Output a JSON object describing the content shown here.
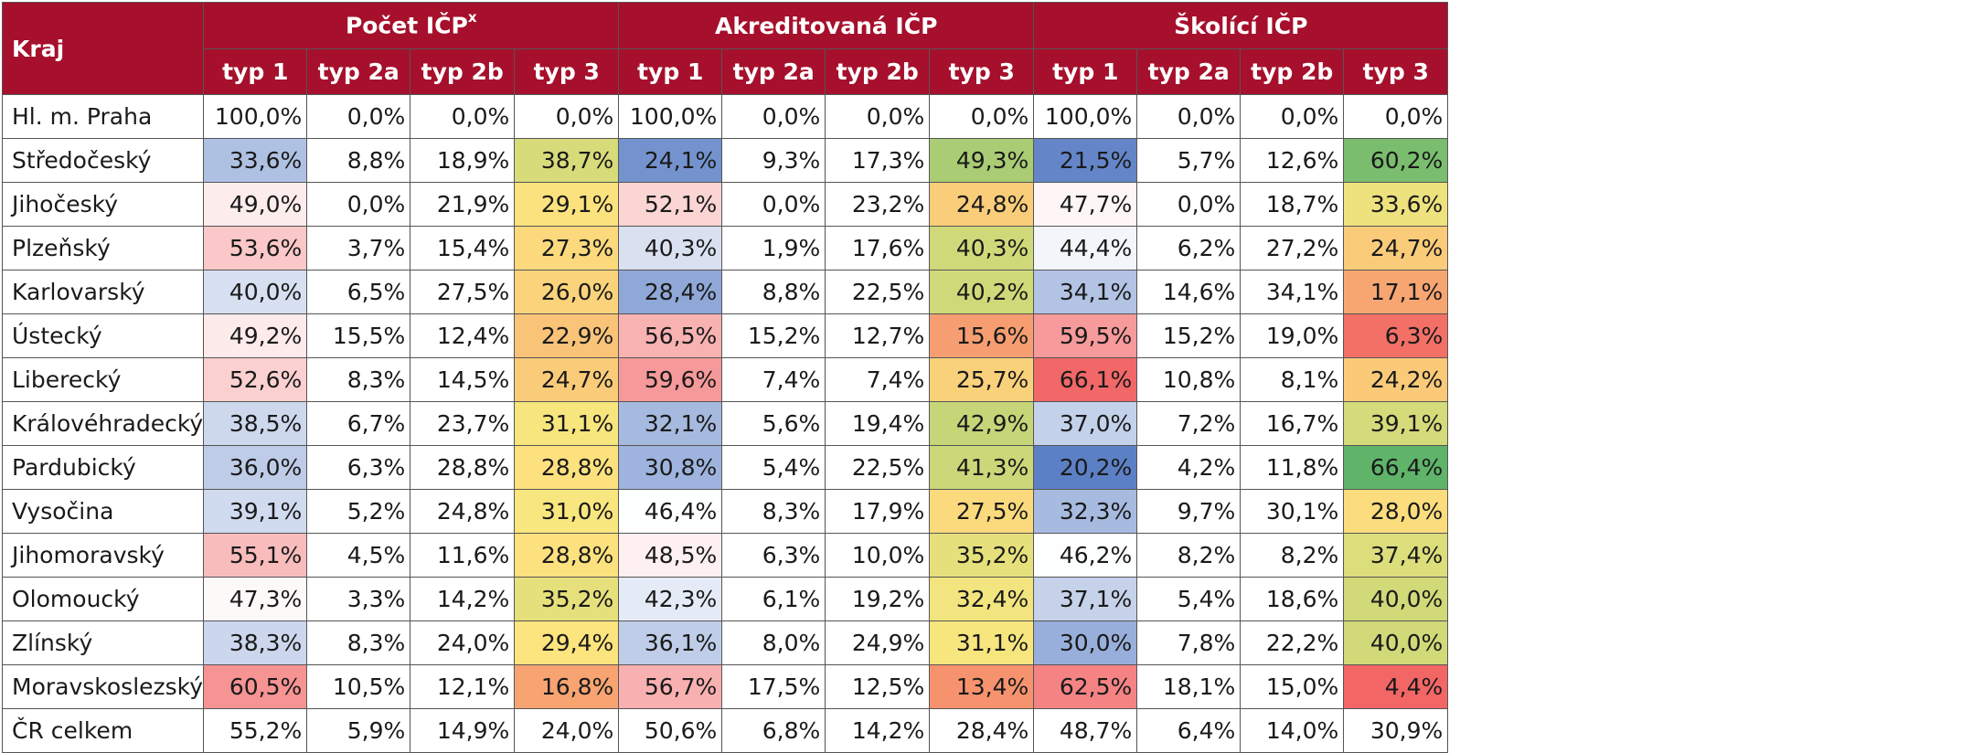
{
  "chart_data": {
    "type": "table",
    "row_header": "Kraj",
    "groups": [
      {
        "label": "Počet IČP",
        "sup": "x"
      },
      {
        "label": "Akreditovaná IČP",
        "sup": ""
      },
      {
        "label": "Školící IČP",
        "sup": ""
      }
    ],
    "subheaders": [
      "typ 1",
      "typ 2a",
      "typ 2b",
      "typ 3"
    ],
    "rows": [
      {
        "region": "Hl. m. Praha",
        "values": [
          "100,0%",
          "0,0%",
          "0,0%",
          "0,0%",
          "100,0%",
          "0,0%",
          "0,0%",
          "0,0%",
          "100,0%",
          "0,0%",
          "0,0%",
          "0,0%"
        ]
      },
      {
        "region": "Středočeský",
        "values": [
          "33,6%",
          "8,8%",
          "18,9%",
          "38,7%",
          "24,1%",
          "9,3%",
          "17,3%",
          "49,3%",
          "21,5%",
          "5,7%",
          "12,6%",
          "60,2%"
        ]
      },
      {
        "region": "Jihočeský",
        "values": [
          "49,0%",
          "0,0%",
          "21,9%",
          "29,1%",
          "52,1%",
          "0,0%",
          "23,2%",
          "24,8%",
          "47,7%",
          "0,0%",
          "18,7%",
          "33,6%"
        ]
      },
      {
        "region": "Plzeňský",
        "values": [
          "53,6%",
          "3,7%",
          "15,4%",
          "27,3%",
          "40,3%",
          "1,9%",
          "17,6%",
          "40,3%",
          "44,4%",
          "6,2%",
          "27,2%",
          "24,7%"
        ]
      },
      {
        "region": "Karlovarský",
        "values": [
          "40,0%",
          "6,5%",
          "27,5%",
          "26,0%",
          "28,4%",
          "8,8%",
          "22,5%",
          "40,2%",
          "34,1%",
          "14,6%",
          "34,1%",
          "17,1%"
        ]
      },
      {
        "region": "Ústecký",
        "values": [
          "49,2%",
          "15,5%",
          "12,4%",
          "22,9%",
          "56,5%",
          "15,2%",
          "12,7%",
          "15,6%",
          "59,5%",
          "15,2%",
          "19,0%",
          "6,3%"
        ]
      },
      {
        "region": "Liberecký",
        "values": [
          "52,6%",
          "8,3%",
          "14,5%",
          "24,7%",
          "59,6%",
          "7,4%",
          "7,4%",
          "25,7%",
          "66,1%",
          "10,8%",
          "8,1%",
          "24,2%"
        ]
      },
      {
        "region": "Královéhradecký",
        "values": [
          "38,5%",
          "6,7%",
          "23,7%",
          "31,1%",
          "32,1%",
          "5,6%",
          "19,4%",
          "42,9%",
          "37,0%",
          "7,2%",
          "16,7%",
          "39,1%"
        ]
      },
      {
        "region": "Pardubický",
        "values": [
          "36,0%",
          "6,3%",
          "28,8%",
          "28,8%",
          "30,8%",
          "5,4%",
          "22,5%",
          "41,3%",
          "20,2%",
          "4,2%",
          "11,8%",
          "66,4%"
        ]
      },
      {
        "region": "Vysočina",
        "values": [
          "39,1%",
          "5,2%",
          "24,8%",
          "31,0%",
          "46,4%",
          "8,3%",
          "17,9%",
          "27,5%",
          "32,3%",
          "9,7%",
          "30,1%",
          "28,0%"
        ]
      },
      {
        "region": "Jihomoravský",
        "values": [
          "55,1%",
          "4,5%",
          "11,6%",
          "28,8%",
          "48,5%",
          "6,3%",
          "10,0%",
          "35,2%",
          "46,2%",
          "8,2%",
          "8,2%",
          "37,4%"
        ]
      },
      {
        "region": "Olomoucký",
        "values": [
          "47,3%",
          "3,3%",
          "14,2%",
          "35,2%",
          "42,3%",
          "6,1%",
          "19,2%",
          "32,4%",
          "37,1%",
          "5,4%",
          "18,6%",
          "40,0%"
        ]
      },
      {
        "region": "Zlínský",
        "values": [
          "38,3%",
          "8,3%",
          "24,0%",
          "29,4%",
          "36,1%",
          "8,0%",
          "24,9%",
          "31,1%",
          "30,0%",
          "7,8%",
          "22,2%",
          "40,0%"
        ]
      },
      {
        "region": "Moravskoslezský",
        "values": [
          "60,5%",
          "10,5%",
          "12,1%",
          "16,8%",
          "56,7%",
          "17,5%",
          "12,5%",
          "13,4%",
          "62,5%",
          "18,1%",
          "15,0%",
          "4,4%"
        ]
      },
      {
        "region": "ČR celkem",
        "values": [
          "55,2%",
          "5,9%",
          "14,9%",
          "24,0%",
          "50,6%",
          "6,8%",
          "14,2%",
          "28,4%",
          "48,7%",
          "6,4%",
          "14,0%",
          "30,9%"
        ]
      }
    ],
    "colors": {
      "header_bg": "#a6102c",
      "header_text": "#ffffff",
      "scale_low_typ1": "#5b7fc5",
      "scale_high_typ1": "#f26465",
      "scale_low_typ3": "#f26465",
      "scale_mid_typ3": "#fce77f",
      "scale_high_typ3": "#5fb46a"
    }
  }
}
